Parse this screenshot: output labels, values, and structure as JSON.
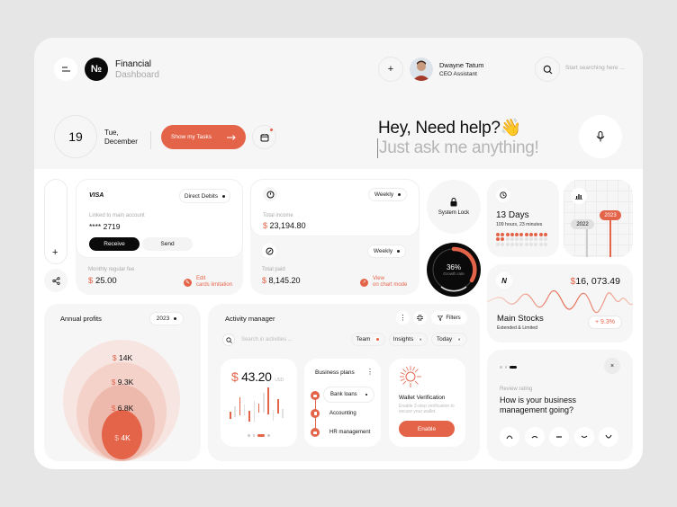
{
  "header": {
    "app_title": "Financial",
    "app_subtitle": "Dashboard",
    "logo_text": "№",
    "user": {
      "name": "Dwayne Tatum",
      "role": "CEO Assistant"
    },
    "search_placeholder": "Start searching here ..."
  },
  "date_bar": {
    "day": "19",
    "weekday": "Tue,",
    "month": "December",
    "show_tasks_label": "Show my Tasks"
  },
  "assistant": {
    "greeting": "Hey, Need help?👋",
    "prompt_placeholder": "Just ask me anything!"
  },
  "card_panel": {
    "brand": "VISA",
    "dropdown": "Direct Debits",
    "linked_label": "Linked to main account",
    "card_number": "**** 2719",
    "receive_label": "Receive",
    "send_label": "Send",
    "fee_label": "Monthly regular fee",
    "fee_currency": "$",
    "fee_value": "25.00",
    "edit_line1": "Edit",
    "edit_line2": "cards limitation"
  },
  "income_panel": {
    "income_period": "Weekly",
    "income_label": "Total income",
    "income_currency": "$",
    "income_value": "23,194.80",
    "paid_period": "Weekly",
    "paid_label": "Total paid",
    "paid_currency": "$",
    "paid_value": "8,145.20",
    "view_line1": "View",
    "view_line2": "on chart mode"
  },
  "system_lock": {
    "label": "System Lock"
  },
  "growth": {
    "value": "36%",
    "label": "Growth rate",
    "percent": 36
  },
  "days_card": {
    "title": "13 Days",
    "subtitle": "109 hours, 23 minutes",
    "filled_dots": 13,
    "total_dots": 33
  },
  "year_card": {
    "year_a": "2022",
    "year_b": "2023"
  },
  "stocks": {
    "currency": "$",
    "value": "16, 073.49",
    "title": "Main Stocks",
    "subtitle": "Extended & Limited",
    "change": "+ 9.3%"
  },
  "review": {
    "label": "Review rating",
    "question": "How is your business management going?",
    "close": "×"
  },
  "annual_profits": {
    "title": "Annual profits",
    "year": "2023",
    "rings": [
      {
        "currency": "$",
        "value": "14K"
      },
      {
        "currency": "$",
        "value": "9.3K"
      },
      {
        "currency": "$",
        "value": "6.8K"
      },
      {
        "currency": "$",
        "value": "4K"
      }
    ]
  },
  "activity": {
    "title": "Activity manager",
    "filters_label": "Filters",
    "search_placeholder": "Search in activities ...",
    "chips": [
      {
        "label": "Team"
      },
      {
        "label": "Insights"
      },
      {
        "label": "Today"
      }
    ],
    "amount_currency": "$",
    "amount_value": "43.20",
    "amount_unit": "USD",
    "business_title": "Business plans",
    "business_items": [
      {
        "label": "Bank loans"
      },
      {
        "label": "Accounting"
      },
      {
        "label": "HR management"
      }
    ],
    "wallet_title": "Wallet Verification",
    "wallet_desc": "Enable 2-step verification to secure your wallet.",
    "wallet_button": "Enable"
  },
  "colors": {
    "accent": "#e4644a",
    "background": "#f6f6f6",
    "dark": "#111111"
  }
}
